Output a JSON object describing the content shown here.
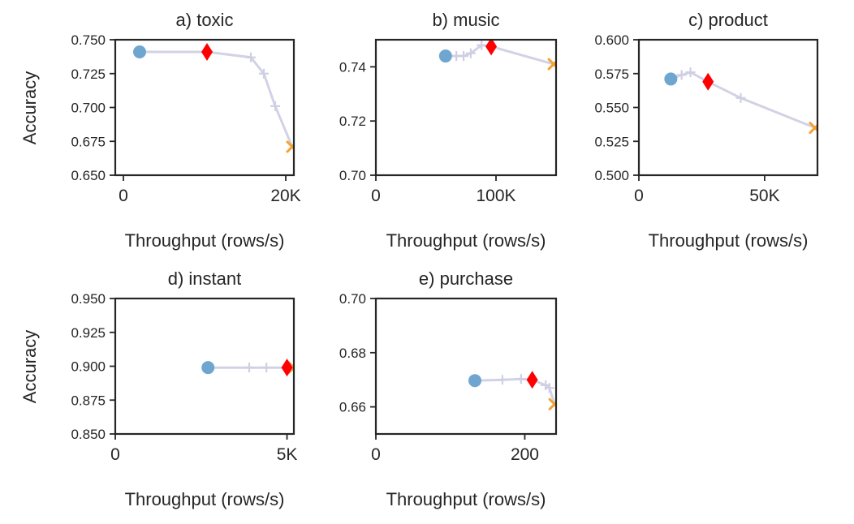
{
  "figure": {
    "ylabel": "Accuracy",
    "xlabel": "Throughput (rows/s)"
  },
  "colors": {
    "trace": "#d2d2e6",
    "baseline_circle": "#6fa6cf",
    "selected_diamond": "#ff0000",
    "fastest_cross": "#f5a231",
    "axes": "#262626"
  },
  "chart_data": [
    {
      "id": "toxic",
      "type": "line",
      "title": "a) toxic",
      "xlim": [
        -1000,
        21000
      ],
      "ylim": [
        0.65,
        0.75
      ],
      "xticks": [
        0,
        20000
      ],
      "xtick_labels": [
        "0",
        "20K"
      ],
      "yticks": [
        0.65,
        0.675,
        0.7,
        0.725,
        0.75
      ],
      "ytick_labels": [
        "0.650",
        "0.675",
        "0.700",
        "0.725",
        "0.750"
      ],
      "series": [
        {
          "marker": "line",
          "x": [
            2000,
            10300,
            15700,
            17300,
            18700,
            20800
          ],
          "y": [
            0.741,
            0.741,
            0.737,
            0.725,
            0.701,
            0.671
          ]
        },
        {
          "marker": "plus",
          "x": [
            15700,
            17300,
            18700
          ],
          "y": [
            0.737,
            0.725,
            0.701
          ]
        },
        {
          "marker": "circle",
          "x": [
            2000
          ],
          "y": [
            0.741
          ]
        },
        {
          "marker": "diamond",
          "x": [
            10300
          ],
          "y": [
            0.741
          ]
        },
        {
          "marker": "cross",
          "x": [
            20800
          ],
          "y": [
            0.671
          ]
        }
      ]
    },
    {
      "id": "music",
      "type": "line",
      "title": "b) music",
      "xlim": [
        0,
        150000
      ],
      "ylim": [
        0.7,
        0.75
      ],
      "xticks": [
        0,
        100000
      ],
      "xtick_labels": [
        "0",
        "100K"
      ],
      "yticks": [
        0.7,
        0.72,
        0.74
      ],
      "ytick_labels": [
        "0.70",
        "0.72",
        "0.74"
      ],
      "series": [
        {
          "marker": "line",
          "x": [
            58000,
            67000,
            73000,
            79000,
            88000,
            96000,
            148000
          ],
          "y": [
            0.744,
            0.744,
            0.744,
            0.745,
            0.748,
            0.7475,
            0.741
          ]
        },
        {
          "marker": "plus",
          "x": [
            67000,
            73000,
            79000,
            88000
          ],
          "y": [
            0.744,
            0.744,
            0.745,
            0.748
          ]
        },
        {
          "marker": "circle",
          "x": [
            58000
          ],
          "y": [
            0.744
          ]
        },
        {
          "marker": "diamond",
          "x": [
            96000
          ],
          "y": [
            0.7475
          ]
        },
        {
          "marker": "cross",
          "x": [
            148000
          ],
          "y": [
            0.741
          ]
        }
      ]
    },
    {
      "id": "product",
      "type": "line",
      "title": "c) product",
      "xlim": [
        0,
        71000
      ],
      "ylim": [
        0.5,
        0.6
      ],
      "xticks": [
        0,
        50000
      ],
      "xtick_labels": [
        "0",
        "50K"
      ],
      "yticks": [
        0.5,
        0.525,
        0.55,
        0.575,
        0.6
      ],
      "ytick_labels": [
        "0.500",
        "0.525",
        "0.550",
        "0.575",
        "0.600"
      ],
      "series": [
        {
          "marker": "line",
          "x": [
            12700,
            17000,
            20500,
            27500,
            40500,
            70000
          ],
          "y": [
            0.571,
            0.574,
            0.576,
            0.569,
            0.557,
            0.535
          ]
        },
        {
          "marker": "plus",
          "x": [
            17000,
            20500,
            40500
          ],
          "y": [
            0.574,
            0.576,
            0.557
          ]
        },
        {
          "marker": "circle",
          "x": [
            12700
          ],
          "y": [
            0.571
          ]
        },
        {
          "marker": "diamond",
          "x": [
            27500
          ],
          "y": [
            0.569
          ]
        },
        {
          "marker": "cross",
          "x": [
            70000
          ],
          "y": [
            0.535
          ]
        }
      ]
    },
    {
      "id": "instant",
      "type": "line",
      "title": "d) instant",
      "xlim": [
        0,
        5200
      ],
      "ylim": [
        0.85,
        0.95
      ],
      "xticks": [
        0,
        5000
      ],
      "xtick_labels": [
        "0",
        "5K"
      ],
      "yticks": [
        0.85,
        0.875,
        0.9,
        0.925,
        0.95
      ],
      "ytick_labels": [
        "0.850",
        "0.875",
        "0.900",
        "0.925",
        "0.950"
      ],
      "series": [
        {
          "marker": "line",
          "x": [
            2700,
            3900,
            4400,
            5000,
            5200
          ],
          "y": [
            0.899,
            0.899,
            0.899,
            0.899,
            0.899
          ]
        },
        {
          "marker": "plus",
          "x": [
            3900,
            4400
          ],
          "y": [
            0.899,
            0.899
          ]
        },
        {
          "marker": "cross",
          "x": [
            5200
          ],
          "y": [
            0.899
          ]
        },
        {
          "marker": "circle",
          "x": [
            2700
          ],
          "y": [
            0.899
          ]
        },
        {
          "marker": "diamond",
          "x": [
            5000
          ],
          "y": [
            0.899
          ]
        }
      ]
    },
    {
      "id": "purchase",
      "type": "line",
      "title": "e) purchase",
      "xlim": [
        0,
        242
      ],
      "ylim": [
        0.65,
        0.7
      ],
      "xticks": [
        0,
        200
      ],
      "xtick_labels": [
        "0",
        "200"
      ],
      "yticks": [
        0.66,
        0.68,
        0.7
      ],
      "ytick_labels": [
        "0.66",
        "0.68",
        "0.70"
      ],
      "series": [
        {
          "marker": "line",
          "x": [
            133,
            170,
            195,
            210,
            228,
            233,
            240
          ],
          "y": [
            0.6697,
            0.67,
            0.6703,
            0.67,
            0.668,
            0.667,
            0.661
          ]
        },
        {
          "marker": "plus",
          "x": [
            170,
            195,
            228,
            233
          ],
          "y": [
            0.67,
            0.6703,
            0.668,
            0.667
          ]
        },
        {
          "marker": "circle",
          "x": [
            133
          ],
          "y": [
            0.6697
          ]
        },
        {
          "marker": "diamond",
          "x": [
            210
          ],
          "y": [
            0.67
          ]
        },
        {
          "marker": "cross",
          "x": [
            240
          ],
          "y": [
            0.661
          ]
        }
      ]
    }
  ]
}
